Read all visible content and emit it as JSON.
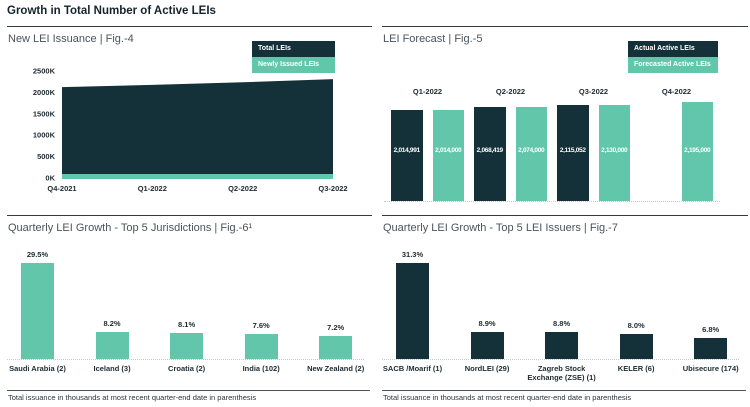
{
  "header": {
    "title": "Growth in Total Number of Active LEIs"
  },
  "colors": {
    "dark": "#14313a",
    "teal": "#62c6ab",
    "panel_title": "#4a545c",
    "text_dark": "#1f2a30",
    "rule": "#303c44"
  },
  "footnote": "Total issuance in thousands at most recent quarter-end date in parenthesis",
  "chart_data": [
    {
      "id": "fig4",
      "type": "area",
      "title": "New LEI Issuance | Fig.-4",
      "legend": [
        {
          "label": "Total LEIs",
          "color": "#14313a"
        },
        {
          "label": "Newly Issued LEIs",
          "color": "#62c6ab"
        }
      ],
      "x": [
        "Q4-2021",
        "Q1-2022",
        "Q2-2022",
        "Q3-2022"
      ],
      "series": [
        {
          "name": "Total LEIs",
          "values": [
            2125,
            2175,
            2235,
            2310
          ],
          "unit": "thousands",
          "estimated": true
        },
        {
          "name": "Newly Issued LEIs",
          "values": [
            100,
            100,
            100,
            100
          ],
          "unit": "thousands",
          "estimated": true
        }
      ],
      "yticks": [
        "0K",
        "500K",
        "1000K",
        "1500K",
        "2000K",
        "2500K"
      ],
      "ylim": [
        0,
        2500
      ],
      "grid": false,
      "legend_position": "top-right"
    },
    {
      "id": "fig5",
      "type": "bar",
      "title": "LEI Forecast | Fig.-5",
      "legend": [
        {
          "label": "Actual Active LEIs",
          "color": "#14313a"
        },
        {
          "label": "Forecasted Active LEIs",
          "color": "#62c6ab"
        }
      ],
      "categories": [
        "Q1-2022",
        "Q2-2022",
        "Q3-2022",
        "Q4-2022"
      ],
      "series": [
        {
          "name": "Actual Active LEIs",
          "color": "#14313a",
          "values": [
            2014991,
            2068419,
            2115052,
            null
          ]
        },
        {
          "name": "Forecasted Active LEIs",
          "color": "#62c6ab",
          "values": [
            2014000,
            2074000,
            2130000,
            2195000
          ]
        }
      ],
      "data_labels": true,
      "axis_hidden": true,
      "legend_position": "top-right"
    },
    {
      "id": "fig6",
      "type": "bar",
      "title": "Quarterly LEI Growth - Top 5 Jurisdictions | Fig.-6¹",
      "categories": [
        "Saudi Arabia (2)",
        "Iceland (3)",
        "Croatia (2)",
        "India (102)",
        "New Zealand (2)"
      ],
      "values": [
        29.5,
        8.2,
        8.1,
        7.6,
        7.2
      ],
      "value_suffix": "%",
      "bar_color": "#62c6ab",
      "data_labels": true,
      "axis_hidden": true
    },
    {
      "id": "fig7",
      "type": "bar",
      "title": "Quarterly LEI Growth - Top 5 LEI Issuers | Fig.-7",
      "categories": [
        "SACB /Moarif (1)",
        "NordLEI (29)",
        "Zagreb Stock Exchange (ZSE) (1)",
        "KELER (6)",
        "Ubisecure (174)"
      ],
      "values": [
        31.3,
        8.9,
        8.8,
        8.0,
        6.8
      ],
      "value_suffix": "%",
      "bar_color": "#14313a",
      "data_labels": true,
      "axis_hidden": true
    }
  ]
}
